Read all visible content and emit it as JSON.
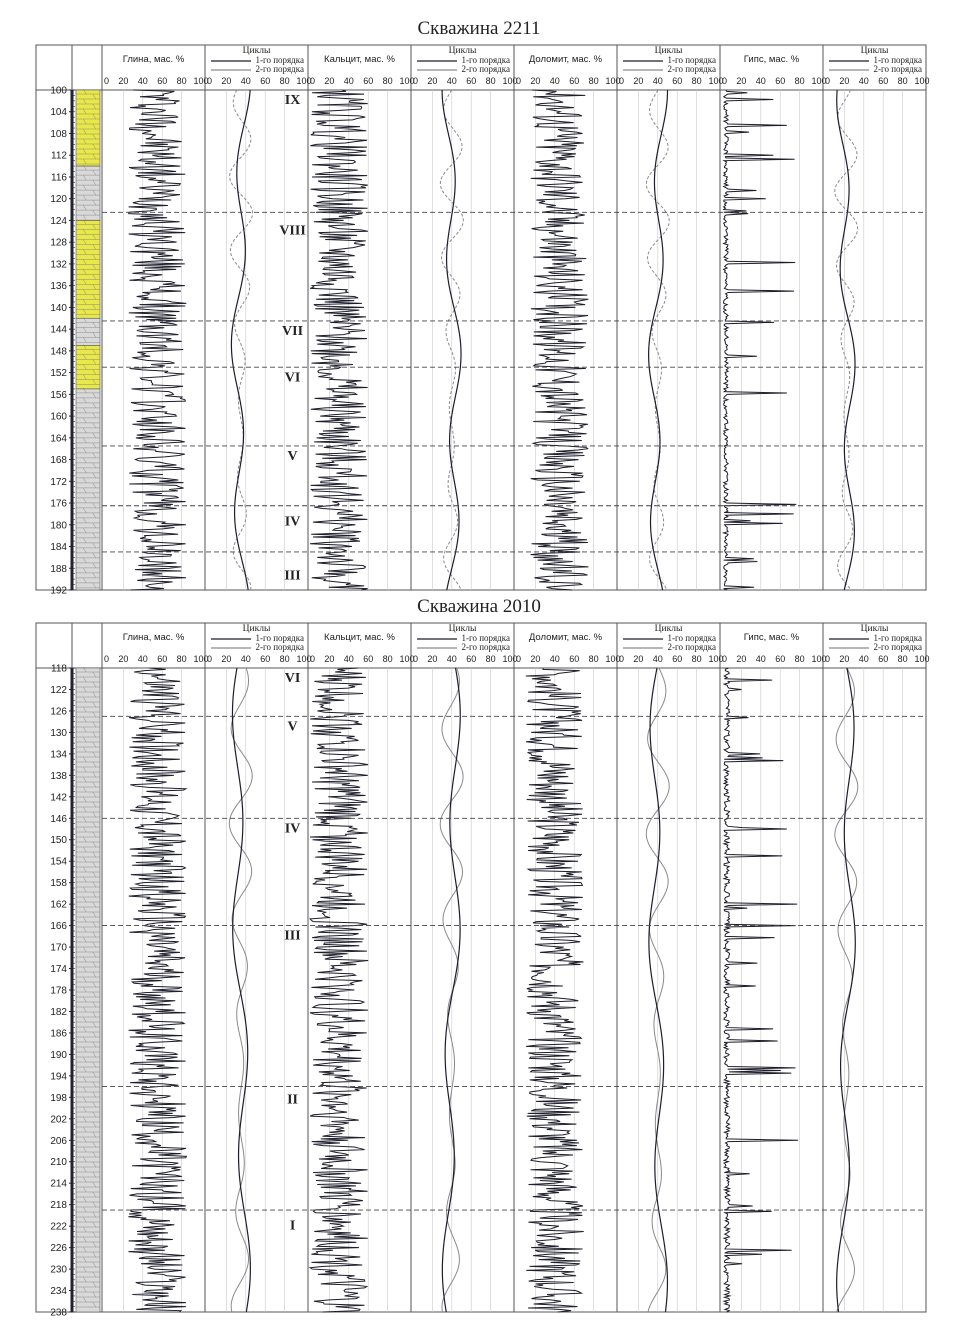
{
  "panels": [
    {
      "title": "Скважина 2211",
      "depth_ticks": [
        "100",
        "104",
        "108",
        "112",
        "116",
        "120",
        "124",
        "128",
        "132",
        "136",
        "140",
        "144",
        "148",
        "152",
        "156",
        "160",
        "164",
        "168",
        "172",
        "176",
        "180",
        "184",
        "188",
        "192"
      ],
      "depth_range": [
        100,
        192
      ],
      "boundaries": [
        122.5,
        142.5,
        151,
        165.5,
        176.5,
        185
      ],
      "cycles": [
        {
          "label": "IX",
          "depth": 101.5
        },
        {
          "label": "VIII",
          "depth": 125.5
        },
        {
          "label": "VII",
          "depth": 144
        },
        {
          "label": "VI",
          "depth": 152.5
        },
        {
          "label": "V",
          "depth": 167
        },
        {
          "label": "IV",
          "depth": 179
        },
        {
          "label": "III",
          "depth": 189
        }
      ],
      "lithology": [
        {
          "from": 100,
          "to": 114,
          "type": "dolomite"
        },
        {
          "from": 114,
          "to": 124,
          "type": "gray"
        },
        {
          "from": 124,
          "to": 142,
          "type": "dolomite"
        },
        {
          "from": 142,
          "to": 147,
          "type": "gray"
        },
        {
          "from": 147,
          "to": 155,
          "type": "dolomite"
        },
        {
          "from": 155,
          "to": 192,
          "type": "gray"
        }
      ],
      "mean_clay": 55,
      "mean_calc": 30,
      "mean_dolo": 45,
      "mean_gyps": 4
    },
    {
      "title": "Скважина 2010",
      "depth_ticks": [
        "118",
        "122",
        "126",
        "130",
        "134",
        "138",
        "142",
        "146",
        "150",
        "154",
        "158",
        "162",
        "166",
        "170",
        "174",
        "178",
        "182",
        "186",
        "190",
        "194",
        "198",
        "202",
        "206",
        "210",
        "214",
        "218",
        "222",
        "226",
        "230",
        "234",
        "238"
      ],
      "depth_range": [
        118,
        238
      ],
      "boundaries": [
        127,
        146,
        166,
        196,
        219
      ],
      "cycles": [
        {
          "label": "VI",
          "depth": 119.5
        },
        {
          "label": "V",
          "depth": 128.5
        },
        {
          "label": "IV",
          "depth": 147.5
        },
        {
          "label": "III",
          "depth": 167.5
        },
        {
          "label": "II",
          "depth": 198
        },
        {
          "label": "I",
          "depth": 221.5
        }
      ],
      "lithology": [
        {
          "from": 118,
          "to": 238,
          "type": "gray"
        }
      ],
      "mean_clay": 55,
      "mean_calc": 30,
      "mean_dolo": 40,
      "mean_gyps": 5
    }
  ],
  "columns": [
    {
      "title": "Глина, мас. %",
      "type": "data",
      "key": "clay"
    },
    {
      "title": "Циклы",
      "type": "cycles",
      "legend1": "1-го порядка",
      "legend2": "2-го порядка"
    },
    {
      "title": "Кальцит, мас. %",
      "type": "data",
      "key": "calc"
    },
    {
      "title": "Циклы",
      "type": "cycles",
      "legend1": "1-го порядка",
      "legend2": "2-го порядка"
    },
    {
      "title": "Доломит, мас. %",
      "type": "data",
      "key": "dolo"
    },
    {
      "title": "Циклы",
      "type": "cycles",
      "legend1": "1-го порядка",
      "legend2": "2-го порядка"
    },
    {
      "title": "Гипс, мас. %",
      "type": "data",
      "key": "gyps"
    },
    {
      "title": "Циклы",
      "type": "cycles",
      "legend1": "1-го порядка",
      "legend2": "2-го порядка"
    }
  ],
  "x_ticks": [
    "0",
    "20",
    "40",
    "60",
    "80",
    "100"
  ],
  "colors": {
    "dolomite_fill": "#e9e84a",
    "gray_fill": "#d9d9d9",
    "line": "#1d1d2b",
    "cycle2": "#8a8a8a",
    "grid": "#c8c8c8",
    "boundary": "#444444"
  },
  "chart_data": [
    {
      "type": "line",
      "title": "Скважина 2211",
      "ylabel": "",
      "ylim": [
        100,
        192
      ],
      "series": [
        {
          "name": "Глина, мас. %"
        },
        {
          "name": "Кальцит, мас. %"
        },
        {
          "name": "Доломит, мас. %"
        },
        {
          "name": "Гипс, мас. %"
        }
      ],
      "xlim": [
        0,
        100
      ]
    },
    {
      "type": "line",
      "title": "Скважина 2010",
      "ylabel": "",
      "ylim": [
        118,
        238
      ],
      "series": [
        {
          "name": "Глина, мас. %"
        },
        {
          "name": "Кальцит, мас. %"
        },
        {
          "name": "Доломит, мас. %"
        },
        {
          "name": "Гипс, мас. %"
        }
      ],
      "xlim": [
        0,
        100
      ]
    }
  ]
}
